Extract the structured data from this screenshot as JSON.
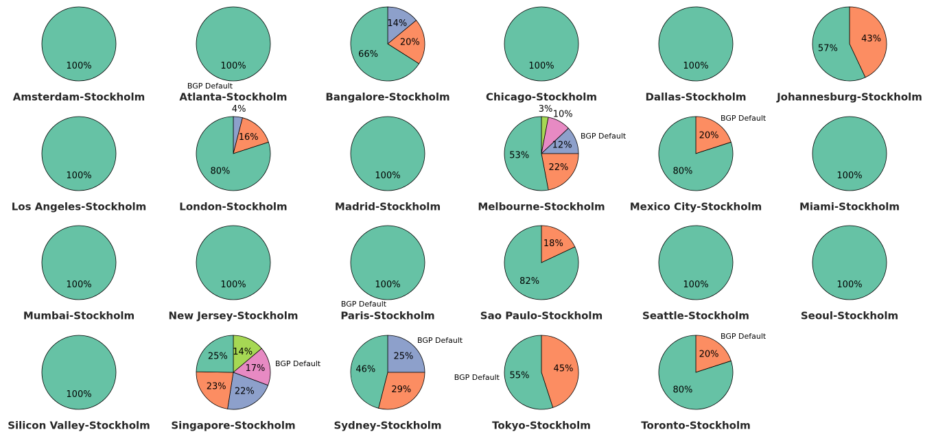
{
  "chart_data": [
    {
      "type": "pie",
      "title": "Amsterdam-Stockholm",
      "values": [
        100
      ],
      "value_labels": [
        "100%"
      ],
      "colors": [
        "#66c2a5"
      ]
    },
    {
      "type": "pie",
      "title": "Atlanta-Stockholm",
      "values": [
        100
      ],
      "value_labels": [
        "100%"
      ],
      "colors": [
        "#66c2a5"
      ],
      "annotation": "BGP Default"
    },
    {
      "type": "pie",
      "title": "Bangalore-Stockholm",
      "values": [
        14,
        20,
        66
      ],
      "value_labels": [
        "14%",
        "20%",
        "66%"
      ],
      "colors": [
        "#8da0cb",
        "#fc8d62",
        "#66c2a5"
      ]
    },
    {
      "type": "pie",
      "title": "Chicago-Stockholm",
      "values": [
        100
      ],
      "value_labels": [
        "100%"
      ],
      "colors": [
        "#66c2a5"
      ]
    },
    {
      "type": "pie",
      "title": "Dallas-Stockholm",
      "values": [
        100
      ],
      "value_labels": [
        "100%"
      ],
      "colors": [
        "#66c2a5"
      ]
    },
    {
      "type": "pie",
      "title": "Johannesburg-Stockholm",
      "values": [
        43,
        57
      ],
      "value_labels": [
        "43%",
        "57%"
      ],
      "colors": [
        "#fc8d62",
        "#66c2a5"
      ]
    },
    {
      "type": "pie",
      "title": "Los Angeles-Stockholm",
      "values": [
        100
      ],
      "value_labels": [
        "100%"
      ],
      "colors": [
        "#66c2a5"
      ]
    },
    {
      "type": "pie",
      "title": "London-Stockholm",
      "values": [
        4,
        16,
        80
      ],
      "value_labels": [
        "4%",
        "16%",
        "80%"
      ],
      "colors": [
        "#8da0cb",
        "#fc8d62",
        "#66c2a5"
      ]
    },
    {
      "type": "pie",
      "title": "Madrid-Stockholm",
      "values": [
        100
      ],
      "value_labels": [
        "100%"
      ],
      "colors": [
        "#66c2a5"
      ]
    },
    {
      "type": "pie",
      "title": "Melbourne-Stockholm",
      "values": [
        3,
        10,
        12,
        22,
        53
      ],
      "value_labels": [
        "3%",
        "10%",
        "12%",
        "22%",
        "53%"
      ],
      "colors": [
        "#a6d854",
        "#e78ac3",
        "#8da0cb",
        "#fc8d62",
        "#66c2a5"
      ],
      "annotation": "BGP Default"
    },
    {
      "type": "pie",
      "title": "Mexico City-Stockholm",
      "values": [
        20,
        80
      ],
      "value_labels": [
        "20%",
        "80%"
      ],
      "colors": [
        "#fc8d62",
        "#66c2a5"
      ],
      "annotation": "BGP Default"
    },
    {
      "type": "pie",
      "title": "Miami-Stockholm",
      "values": [
        100
      ],
      "value_labels": [
        "100%"
      ],
      "colors": [
        "#66c2a5"
      ]
    },
    {
      "type": "pie",
      "title": "Mumbai-Stockholm",
      "values": [
        100
      ],
      "value_labels": [
        "100%"
      ],
      "colors": [
        "#66c2a5"
      ]
    },
    {
      "type": "pie",
      "title": "New Jersey-Stockholm",
      "values": [
        100
      ],
      "value_labels": [
        "100%"
      ],
      "colors": [
        "#66c2a5"
      ]
    },
    {
      "type": "pie",
      "title": "Paris-Stockholm",
      "values": [
        100
      ],
      "value_labels": [
        "100%"
      ],
      "colors": [
        "#66c2a5"
      ],
      "annotation": "BGP Default"
    },
    {
      "type": "pie",
      "title": "Sao Paulo-Stockholm",
      "values": [
        18,
        82
      ],
      "value_labels": [
        "18%",
        "82%"
      ],
      "colors": [
        "#fc8d62",
        "#66c2a5"
      ]
    },
    {
      "type": "pie",
      "title": "Seattle-Stockholm",
      "values": [
        100
      ],
      "value_labels": [
        "100%"
      ],
      "colors": [
        "#66c2a5"
      ]
    },
    {
      "type": "pie",
      "title": "Seoul-Stockholm",
      "values": [
        100
      ],
      "value_labels": [
        "100%"
      ],
      "colors": [
        "#66c2a5"
      ]
    },
    {
      "type": "pie",
      "title": "Silicon Valley-Stockholm",
      "values": [
        100
      ],
      "value_labels": [
        "100%"
      ],
      "colors": [
        "#66c2a5"
      ]
    },
    {
      "type": "pie",
      "title": "Singapore-Stockholm",
      "values": [
        14,
        17,
        22,
        23,
        25
      ],
      "value_labels": [
        "14%",
        "17%",
        "22%",
        "23%",
        "25%"
      ],
      "colors": [
        "#a6d854",
        "#e78ac3",
        "#8da0cb",
        "#fc8d62",
        "#66c2a5"
      ],
      "annotation": "BGP Default"
    },
    {
      "type": "pie",
      "title": "Sydney-Stockholm",
      "values": [
        25,
        29,
        46
      ],
      "value_labels": [
        "25%",
        "29%",
        "46%"
      ],
      "colors": [
        "#8da0cb",
        "#fc8d62",
        "#66c2a5"
      ],
      "annotation": "BGP Default"
    },
    {
      "type": "pie",
      "title": "Tokyo-Stockholm",
      "values": [
        45,
        55
      ],
      "value_labels": [
        "45%",
        "55%"
      ],
      "colors": [
        "#fc8d62",
        "#66c2a5"
      ],
      "annotation": "BGP Default"
    },
    {
      "type": "pie",
      "title": "Toronto-Stockholm",
      "values": [
        20,
        80
      ],
      "value_labels": [
        "20%",
        "80%"
      ],
      "colors": [
        "#fc8d62",
        "#66c2a5"
      ],
      "annotation": "BGP Default"
    }
  ]
}
